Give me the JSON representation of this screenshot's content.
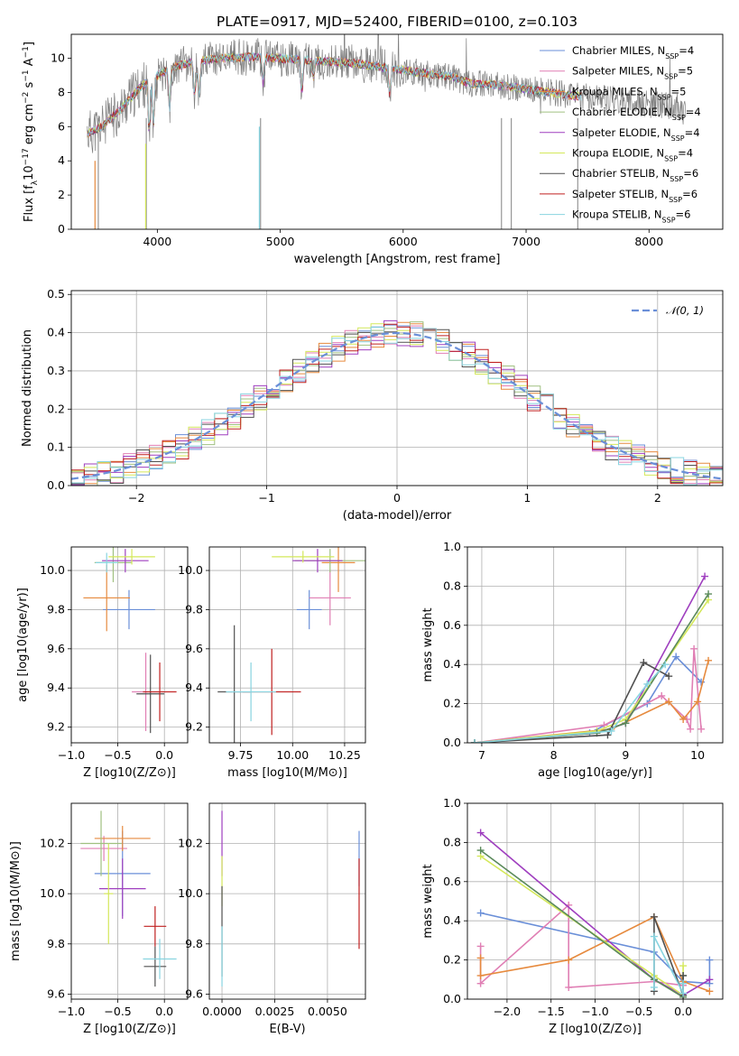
{
  "figure_title": "PLATE=0917, MJD=52400, FIBERID=0100, z=0.103",
  "colors": {
    "chabrier_miles": "#6a8fd8",
    "salpeter_miles": "#e07fb4",
    "kroupa_miles": "#e68a3e",
    "chabrier_elodie": "#a0c080",
    "salpeter_elodie": "#9f3fbf",
    "kroupa_elodie": "#d4e85a",
    "chabrier_stelib": "#505050",
    "salpeter_stelib": "#c02020",
    "kroupa_stelib": "#88d4e0",
    "data_spectrum": "#808080",
    "normal_curve": "#6a8fd8",
    "green_series": "#5a8a5a"
  },
  "chart_data": [
    {
      "id": "spectrum",
      "type": "line",
      "xlabel": "wavelength [Angstrom, rest frame]",
      "ylabel": "Flux [f_λ 10^-17 erg cm^-2 s^-1 A^-1]",
      "xlim": [
        3300,
        8600
      ],
      "ylim": [
        0,
        11.4
      ],
      "xticks": [
        "4000",
        "5000",
        "6000",
        "7000",
        "8000"
      ],
      "yticks": [
        "0",
        "2",
        "4",
        "6",
        "8",
        "10"
      ],
      "grid": false,
      "legend_position": "top-right",
      "legend": [
        {
          "model": "Chabrier MILES",
          "n_ssp": 4
        },
        {
          "model": "Salpeter MILES",
          "n_ssp": 5
        },
        {
          "model": "Kroupa MILES",
          "n_ssp": 5
        },
        {
          "model": "Chabrier ELODIE",
          "n_ssp": 4
        },
        {
          "model": "Salpeter ELODIE",
          "n_ssp": 4
        },
        {
          "model": "Kroupa ELODIE",
          "n_ssp": 4
        },
        {
          "model": "Chabrier STELIB",
          "n_ssp": 6
        },
        {
          "model": "Salpeter STELIB",
          "n_ssp": 6
        },
        {
          "model": "Kroupa STELIB",
          "n_ssp": 6
        }
      ],
      "continuum_x": [
        3430,
        3550,
        3700,
        3850,
        3950,
        4100,
        4300,
        4500,
        4800,
        5000,
        5200,
        5400,
        5600,
        5800,
        6000,
        6200,
        6400,
        6563,
        6700,
        6900,
        7100,
        7400,
        7700,
        8000,
        8300
      ],
      "continuum_y": [
        5.6,
        6.0,
        7.0,
        8.2,
        8.8,
        9.4,
        9.8,
        10.0,
        10.1,
        10.0,
        9.9,
        9.8,
        9.7,
        9.5,
        9.3,
        9.1,
        8.9,
        8.5,
        8.5,
        8.3,
        8.1,
        7.8,
        7.6,
        7.3,
        7.1
      ]
    },
    {
      "id": "residuals",
      "type": "bar",
      "xlabel": "(data-model)/error",
      "ylabel": "Normed distribution",
      "xlim": [
        -2.5,
        2.5
      ],
      "ylim": [
        0,
        0.51
      ],
      "xticks": [
        "−2",
        "−1",
        "0",
        "1",
        "2"
      ],
      "yticks": [
        "0.0",
        "0.1",
        "0.2",
        "0.3",
        "0.4",
        "0.5"
      ],
      "grid": true,
      "legend_position": "top-right",
      "legend": [
        "𝒩(0, 1)"
      ],
      "bin_width": 0.1,
      "bin_start": -2.5
    },
    {
      "id": "age_vs_Z",
      "type": "scatter",
      "xlabel": "Z [log10(Z/Z⊙)]",
      "ylabel": "age [log10(age/yr)]",
      "xlim": [
        -1.0,
        0.25
      ],
      "ylim": [
        9.12,
        10.12
      ],
      "xticks": [
        "−1.0",
        "−0.5",
        "0.0"
      ],
      "yticks": [
        "9.2",
        "9.4",
        "9.6",
        "9.8",
        "10.0"
      ],
      "grid": true,
      "series": [
        {
          "x": -0.38,
          "y": 9.8,
          "xerr": 0.28,
          "yerr": 0.1
        },
        {
          "x": -0.2,
          "y": 9.38,
          "xerr": 0.15,
          "yerr": 0.2
        },
        {
          "x": -0.62,
          "y": 9.86,
          "xerr": 0.25,
          "yerr": 0.17
        },
        {
          "x": -0.55,
          "y": 10.04,
          "xerr": 0.2,
          "yerr": 0.1
        },
        {
          "x": -0.42,
          "y": 10.05,
          "xerr": 0.25,
          "yerr": 0.06
        },
        {
          "x": -0.35,
          "y": 10.07,
          "xerr": 0.25,
          "yerr": 0.04
        },
        {
          "x": -0.15,
          "y": 9.37,
          "xerr": 0.15,
          "yerr": 0.2
        },
        {
          "x": -0.05,
          "y": 9.38,
          "xerr": 0.18,
          "yerr": 0.15
        },
        {
          "x": -0.62,
          "y": 10.04,
          "xerr": 0.12,
          "yerr": 0.05
        }
      ]
    },
    {
      "id": "age_vs_mass",
      "type": "scatter",
      "xlabel": "mass [log10(M/M⊙)]",
      "ylabel": "",
      "xlim": [
        9.6,
        10.35
      ],
      "ylim": [
        9.12,
        10.12
      ],
      "xticks": [
        "9.75",
        "10.00",
        "10.25"
      ],
      "yticks": [
        "9.2",
        "9.4",
        "9.6",
        "9.8",
        "10.0"
      ],
      "grid": true,
      "series": [
        {
          "x": 10.08,
          "y": 9.8,
          "xerr": 0.06,
          "yerr": 0.1
        },
        {
          "x": 10.18,
          "y": 9.86,
          "xerr": 0.1,
          "yerr": 0.14
        },
        {
          "x": 10.22,
          "y": 10.04,
          "xerr": 0.08,
          "yerr": 0.15
        },
        {
          "x": 10.18,
          "y": 10.05,
          "xerr": 0.17,
          "yerr": 0.06
        },
        {
          "x": 10.12,
          "y": 10.05,
          "xerr": 0.12,
          "yerr": 0.06
        },
        {
          "x": 10.05,
          "y": 10.07,
          "xerr": 0.15,
          "yerr": 0.03
        },
        {
          "x": 9.72,
          "y": 9.38,
          "xerr": 0.08,
          "yerr": 0.34
        },
        {
          "x": 9.9,
          "y": 9.38,
          "xerr": 0.14,
          "yerr": 0.22
        },
        {
          "x": 9.8,
          "y": 9.38,
          "xerr": 0.12,
          "yerr": 0.15
        }
      ]
    },
    {
      "id": "mass_weight_vs_age",
      "type": "line",
      "xlabel": "age [log10(age/yr)]",
      "ylabel": "mass weight",
      "xlim": [
        6.8,
        10.35
      ],
      "ylim": [
        0,
        1.0
      ],
      "xticks": [
        "7",
        "8",
        "9",
        "10"
      ],
      "yticks": [
        "0.0",
        "0.2",
        "0.4",
        "0.6",
        "0.8",
        "1.0"
      ],
      "grid": true,
      "series": [
        {
          "key": "chabrier_miles",
          "x": [
            6.9,
            8.5,
            9.3,
            9.7,
            10.05
          ],
          "y": [
            0.0,
            0.05,
            0.2,
            0.44,
            0.31
          ]
        },
        {
          "key": "salpeter_miles",
          "x": [
            6.9,
            8.7,
            9.5,
            9.85,
            9.9,
            9.95,
            10.05
          ],
          "y": [
            0.0,
            0.09,
            0.24,
            0.12,
            0.07,
            0.48,
            0.07
          ]
        },
        {
          "key": "kroupa_miles",
          "x": [
            6.9,
            8.8,
            9.6,
            9.8,
            10.0,
            10.15
          ],
          "y": [
            0.0,
            0.07,
            0.21,
            0.12,
            0.21,
            0.42
          ]
        },
        {
          "key": "salpeter_elodie",
          "x": [
            6.9,
            8.6,
            9.0,
            10.1
          ],
          "y": [
            0.0,
            0.05,
            0.1,
            0.85
          ]
        },
        {
          "key": "kroupa_elodie",
          "x": [
            6.9,
            8.6,
            9.0,
            10.15
          ],
          "y": [
            0.0,
            0.06,
            0.12,
            0.73
          ]
        },
        {
          "key": "green_series",
          "x": [
            6.9,
            8.6,
            9.0,
            10.15
          ],
          "y": [
            0.0,
            0.05,
            0.1,
            0.76
          ]
        },
        {
          "key": "chabrier_stelib",
          "x": [
            6.9,
            8.75,
            9.25,
            9.6
          ],
          "y": [
            0.0,
            0.04,
            0.41,
            0.34
          ]
        },
        {
          "key": "kroupa_stelib",
          "x": [
            6.9,
            8.8,
            9.3,
            9.55
          ],
          "y": [
            0.0,
            0.06,
            0.3,
            0.4
          ]
        }
      ]
    },
    {
      "id": "mass_vs_Z",
      "type": "scatter",
      "xlabel": "Z [log10(Z/Z⊙)]",
      "ylabel": "mass [log10(M/M⊙)]",
      "xlim": [
        -1.0,
        0.25
      ],
      "ylim": [
        9.58,
        10.36
      ],
      "xticks": [
        "−1.0",
        "−0.5",
        "0.0"
      ],
      "yticks": [
        "9.6",
        "9.8",
        "10.0",
        "10.2"
      ],
      "grid": true,
      "series": [
        {
          "x": -0.45,
          "y": 10.08,
          "xerr": 0.3,
          "yerr": 0.17
        },
        {
          "x": -0.65,
          "y": 10.18,
          "xerr": 0.25,
          "yerr": 0.05
        },
        {
          "x": -0.45,
          "y": 10.22,
          "xerr": 0.3,
          "yerr": 0.05
        },
        {
          "x": -0.68,
          "y": 10.2,
          "xerr": 0.22,
          "yerr": 0.13
        },
        {
          "x": -0.45,
          "y": 10.02,
          "xerr": 0.25,
          "yerr": 0.12
        },
        {
          "x": -0.6,
          "y": 10.0,
          "xerr": 0.05,
          "yerr": 0.2
        },
        {
          "x": -0.1,
          "y": 9.71,
          "xerr": 0.12,
          "yerr": 0.08
        },
        {
          "x": -0.1,
          "y": 9.87,
          "xerr": 0.12,
          "yerr": 0.08
        },
        {
          "x": -0.05,
          "y": 9.74,
          "xerr": 0.18,
          "yerr": 0.08
        }
      ]
    },
    {
      "id": "mass_vs_ebv",
      "type": "scatter",
      "xlabel": "E(B-V)",
      "ylabel": "",
      "xlim": [
        -0.0006,
        0.0068
      ],
      "ylim": [
        9.58,
        10.36
      ],
      "xticks": [
        "0.0000",
        "0.0025",
        "0.0050"
      ],
      "yticks": [
        "9.6",
        "9.8",
        "10.0",
        "10.2"
      ],
      "grid": true,
      "series": [
        {
          "x": 0.0,
          "y": 10.2,
          "yerr": 0.13,
          "key": "salpeter_elodie"
        },
        {
          "x": 0.0,
          "y": 10.05,
          "yerr": 0.1,
          "key": "kroupa_elodie"
        },
        {
          "x": 0.0,
          "y": 9.85,
          "yerr": 0.18,
          "key": "chabrier_stelib"
        },
        {
          "x": 0.0,
          "y": 9.75,
          "yerr": 0.12,
          "key": "kroupa_stelib"
        },
        {
          "x": 0.0065,
          "y": 10.14,
          "yerr": 0.11,
          "key": "chabrier_miles"
        },
        {
          "x": 0.0065,
          "y": 9.96,
          "yerr": 0.18,
          "key": "salpeter_stelib"
        }
      ]
    },
    {
      "id": "mass_weight_vs_Z",
      "type": "line",
      "xlabel": "Z [log10(Z/Z⊙)]",
      "ylabel": "mass weight",
      "xlim": [
        -2.45,
        0.45
      ],
      "ylim": [
        0,
        1.0
      ],
      "xticks": [
        "−2.0",
        "−1.5",
        "−1.0",
        "−0.5",
        "0.0"
      ],
      "yticks": [
        "0.0",
        "0.2",
        "0.4",
        "0.6",
        "0.8",
        "1.0"
      ],
      "grid": true,
      "series": [
        {
          "key": "chabrier_miles",
          "x": [
            -2.3,
            -0.33,
            0.0,
            0.3,
            0.3
          ],
          "y": [
            0.44,
            0.24,
            0.09,
            0.08,
            0.2
          ]
        },
        {
          "key": "salpeter_miles",
          "x": [
            -2.3,
            -2.3,
            -1.3,
            -1.3,
            -0.33,
            0.0
          ],
          "y": [
            0.27,
            0.08,
            0.48,
            0.06,
            0.09,
            0.07
          ]
        },
        {
          "key": "kroupa_miles",
          "x": [
            -2.3,
            -2.3,
            -1.3,
            -0.33,
            0.0,
            0.3
          ],
          "y": [
            0.21,
            0.12,
            0.2,
            0.42,
            0.09,
            0.04
          ]
        },
        {
          "key": "salpeter_elodie",
          "x": [
            -2.3,
            -0.33,
            0.0,
            0.3
          ],
          "y": [
            0.85,
            0.1,
            0.02,
            0.1
          ]
        },
        {
          "key": "kroupa_elodie",
          "x": [
            -2.3,
            -0.33,
            0.0,
            0.0
          ],
          "y": [
            0.73,
            0.12,
            0.02,
            0.17
          ]
        },
        {
          "key": "green_series",
          "x": [
            -2.3,
            -0.33,
            0.0,
            0.0
          ],
          "y": [
            0.76,
            0.1,
            0.01,
            0.12
          ]
        },
        {
          "key": "chabrier_stelib",
          "x": [
            -0.33,
            -0.33,
            0.0,
            0.0
          ],
          "y": [
            0.04,
            0.42,
            0.02,
            0.12
          ]
        },
        {
          "key": "kroupa_stelib",
          "x": [
            -0.33,
            -0.33,
            0.0,
            0.0
          ],
          "y": [
            0.06,
            0.32,
            0.03,
            0.08
          ]
        }
      ]
    }
  ]
}
